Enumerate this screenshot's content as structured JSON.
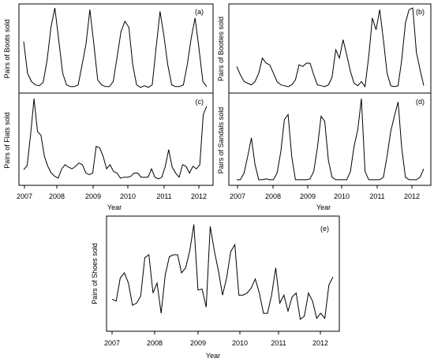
{
  "chart_data": [
    {
      "id": "a",
      "type": "line",
      "tag": "(a)",
      "ylabel": "Pairs of Boots sold",
      "xlabel": "",
      "x_ticks": [
        "2007",
        "2008",
        "2009",
        "2010",
        "2011",
        "2012"
      ],
      "x_start": 2007.0,
      "x_step": 0.08333,
      "values": [
        0.58,
        0.2,
        0.1,
        0.06,
        0.05,
        0.09,
        0.35,
        0.75,
        0.98,
        0.6,
        0.2,
        0.06,
        0.04,
        0.04,
        0.06,
        0.3,
        0.55,
        0.96,
        0.55,
        0.12,
        0.06,
        0.04,
        0.04,
        0.1,
        0.4,
        0.7,
        0.82,
        0.75,
        0.3,
        0.06,
        0.03,
        0.05,
        0.03,
        0.06,
        0.5,
        0.94,
        0.65,
        0.3,
        0.06,
        0.04,
        0.04,
        0.06,
        0.3,
        0.62,
        0.86,
        0.5,
        0.1,
        0.04
      ]
    },
    {
      "id": "b",
      "type": "line",
      "tag": "(b)",
      "ylabel": "Pairs of Booties sold",
      "xlabel": "",
      "x_ticks": [
        "2007",
        "2008",
        "2009",
        "2010",
        "2011",
        "2012"
      ],
      "x_start": 2007.0,
      "x_step": 0.08333,
      "values": [
        0.28,
        0.18,
        0.1,
        0.08,
        0.06,
        0.1,
        0.2,
        0.38,
        0.32,
        0.3,
        0.2,
        0.1,
        0.06,
        0.05,
        0.04,
        0.06,
        0.12,
        0.3,
        0.28,
        0.32,
        0.32,
        0.18,
        0.06,
        0.05,
        0.04,
        0.06,
        0.15,
        0.48,
        0.38,
        0.6,
        0.42,
        0.22,
        0.08,
        0.05,
        0.1,
        0.04,
        0.4,
        0.86,
        0.72,
        0.96,
        0.6,
        0.2,
        0.05,
        0.04,
        0.05,
        0.36,
        0.8,
        0.96,
        0.98,
        0.45,
        0.24,
        0.05
      ]
    },
    {
      "id": "c",
      "type": "line",
      "tag": "(c)",
      "ylabel": "Pairs of Flats sold",
      "xlabel": "",
      "x_ticks": [
        "2007",
        "2008",
        "2009",
        "2010",
        "2011",
        "2012"
      ],
      "x_start": 2007.0,
      "x_step": 0.08333,
      "values": [
        0.14,
        0.19,
        0.56,
        0.99,
        0.6,
        0.55,
        0.3,
        0.18,
        0.1,
        0.06,
        0.04,
        0.15,
        0.2,
        0.17,
        0.15,
        0.18,
        0.22,
        0.2,
        0.1,
        0.08,
        0.1,
        0.42,
        0.4,
        0.3,
        0.15,
        0.2,
        0.12,
        0.1,
        0.04,
        0.05,
        0.05,
        0.06,
        0.1,
        0.1,
        0.05,
        0.05,
        0.05,
        0.15,
        0.05,
        0.03,
        0.05,
        0.18,
        0.38,
        0.17,
        0.1,
        0.05,
        0.2,
        0.18,
        0.1,
        0.18,
        0.15,
        0.2,
        0.8,
        0.9
      ]
    },
    {
      "id": "d",
      "type": "line",
      "tag": "(d)",
      "ylabel": "Pairs of Sandals sold",
      "xlabel": "",
      "x_ticks": [
        "2007",
        "2008",
        "2009",
        "2010",
        "2011",
        "2012"
      ],
      "x_start": 2007.0,
      "x_step": 0.08333,
      "values": [
        0.02,
        0.02,
        0.1,
        0.3,
        0.52,
        0.2,
        0.02,
        0.02,
        0.03,
        0.02,
        0.02,
        0.1,
        0.35,
        0.74,
        0.8,
        0.3,
        0.02,
        0.02,
        0.02,
        0.02,
        0.03,
        0.12,
        0.4,
        0.78,
        0.72,
        0.25,
        0.05,
        0.02,
        0.02,
        0.02,
        0.02,
        0.12,
        0.42,
        0.62,
        0.99,
        0.12,
        0.02,
        0.02,
        0.02,
        0.02,
        0.05,
        0.3,
        0.6,
        0.78,
        0.95,
        0.4,
        0.05,
        0.02,
        0.02,
        0.02,
        0.05,
        0.15
      ]
    },
    {
      "id": "e",
      "type": "line",
      "tag": "(e)",
      "ylabel": "Pairs of Shoes sold",
      "xlabel": "Year",
      "x_ticks": [
        "2007",
        "2008",
        "2009",
        "2010",
        "2011",
        "2012"
      ],
      "x_start": 2007.0,
      "x_step": 0.08333,
      "values": [
        0.24,
        0.22,
        0.45,
        0.5,
        0.4,
        0.18,
        0.2,
        0.27,
        0.65,
        0.68,
        0.3,
        0.4,
        0.1,
        0.48,
        0.66,
        0.68,
        0.68,
        0.5,
        0.55,
        0.72,
        0.98,
        0.33,
        0.34,
        0.16,
        0.96,
        0.72,
        0.52,
        0.28,
        0.45,
        0.71,
        0.78,
        0.28,
        0.28,
        0.3,
        0.35,
        0.44,
        0.3,
        0.1,
        0.1,
        0.28,
        0.55,
        0.2,
        0.28,
        0.12,
        0.26,
        0.3,
        0.04,
        0.07,
        0.3,
        0.22,
        0.05,
        0.1,
        0.05,
        0.38,
        0.46
      ]
    }
  ],
  "shared_xlabel_top": "Year"
}
